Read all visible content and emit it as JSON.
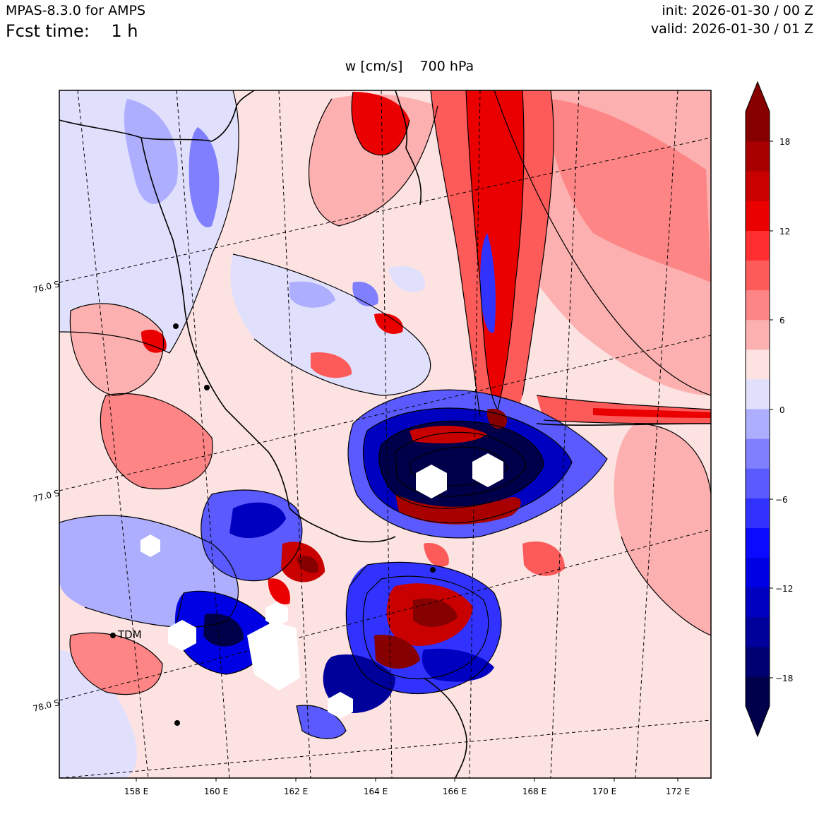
{
  "header": {
    "model": "MPAS-8.3.0 for AMPS",
    "fcst_label": "Fcst time:",
    "fcst_value": "1 h",
    "init": "init: 2026-01-30 / 00 Z",
    "valid": "valid: 2026-01-30 / 01 Z"
  },
  "plot_title": "w [cm/s]    700 hPa",
  "map": {
    "lon_labels": [
      "158 E",
      "160 E",
      "162 E",
      "164 E",
      "166 E",
      "168 E",
      "170 E",
      "172 E"
    ],
    "lat_labels": [
      "76.0 S",
      "77.0 S",
      "78.0 S"
    ],
    "station_label": "TDM"
  },
  "colorbar": {
    "tick_labels": [
      "18",
      "12",
      "6",
      "0",
      "−6",
      "−12",
      "−18"
    ],
    "levels": [
      -20,
      -18,
      -16,
      -14,
      -12,
      -10,
      -8,
      -6,
      -4,
      -2,
      0,
      2,
      4,
      6,
      8,
      10,
      12,
      14,
      16,
      18,
      20
    ],
    "colors": [
      "#00004a",
      "#000073",
      "#00009b",
      "#0000c0",
      "#0000e4",
      "#0a0aff",
      "#3232ff",
      "#5a5aff",
      "#8080ff",
      "#aeaeff",
      "#e0e0fc",
      "#fde2e2",
      "#fcb0b0",
      "#fd8585",
      "#fd5a5a",
      "#ff2f2f",
      "#ea0000",
      "#c90000",
      "#a80000",
      "#860000"
    ],
    "extend_low": "#00004a",
    "extend_high": "#860000"
  }
}
